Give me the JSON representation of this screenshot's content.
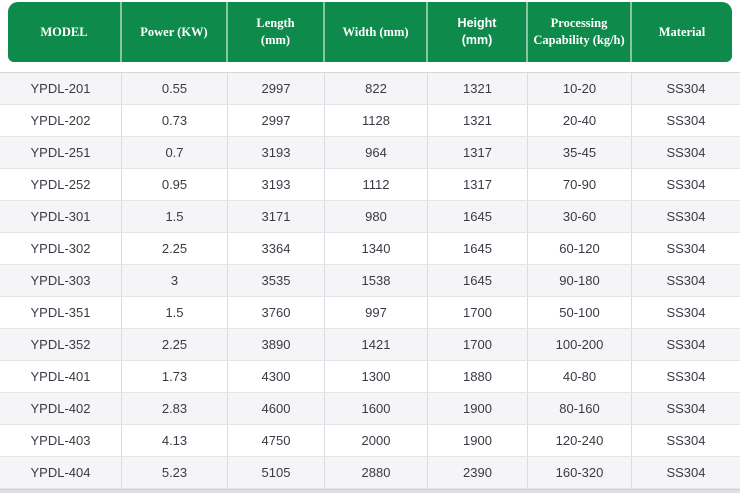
{
  "colors": {
    "header_bg": "#0e8b4a",
    "header_text": "#ffffff",
    "header_divider": "rgba(255,255,255,0.5)",
    "body_text": "#3a3a44",
    "row_stripe": "#f5f5f7",
    "row_border": "#e5e5e9"
  },
  "table": {
    "columns": [
      {
        "key": "model",
        "label": "MODEL"
      },
      {
        "key": "power-kw",
        "label": "Power (KW)"
      },
      {
        "key": "length-mm",
        "label": "Length\n(mm)"
      },
      {
        "key": "width-mm",
        "label": "Width (mm)"
      },
      {
        "key": "height-mm",
        "label": "Height\n(mm)"
      },
      {
        "key": "processing-capability",
        "label": "Processing\nCapability (kg/h)"
      },
      {
        "key": "material",
        "label": "Material"
      }
    ],
    "rows": [
      [
        "YPDL-201",
        "0.55",
        "2997",
        "822",
        "1321",
        "10-20",
        "SS304"
      ],
      [
        "YPDL-202",
        "0.73",
        "2997",
        "1128",
        "1321",
        "20-40",
        "SS304"
      ],
      [
        "YPDL-251",
        "0.7",
        "3193",
        "964",
        "1317",
        "35-45",
        "SS304"
      ],
      [
        "YPDL-252",
        "0.95",
        "3193",
        "1112",
        "1317",
        "70-90",
        "SS304"
      ],
      [
        "YPDL-301",
        "1.5",
        "3171",
        "980",
        "1645",
        "30-60",
        "SS304"
      ],
      [
        "YPDL-302",
        "2.25",
        "3364",
        "1340",
        "1645",
        "60-120",
        "SS304"
      ],
      [
        "YPDL-303",
        "3",
        "3535",
        "1538",
        "1645",
        "90-180",
        "SS304"
      ],
      [
        "YPDL-351",
        "1.5",
        "3760",
        "997",
        "1700",
        "50-100",
        "SS304"
      ],
      [
        "YPDL-352",
        "2.25",
        "3890",
        "1421",
        "1700",
        "100-200",
        "SS304"
      ],
      [
        "YPDL-401",
        "1.73",
        "4300",
        "1300",
        "1880",
        "40-80",
        "SS304"
      ],
      [
        "YPDL-402",
        "2.83",
        "4600",
        "1600",
        "1900",
        "80-160",
        "SS304"
      ],
      [
        "YPDL-403",
        "4.13",
        "4750",
        "2000",
        "1900",
        "120-240",
        "SS304"
      ],
      [
        "YPDL-404",
        "5.23",
        "5105",
        "2880",
        "2390",
        "160-320",
        "SS304"
      ]
    ]
  }
}
